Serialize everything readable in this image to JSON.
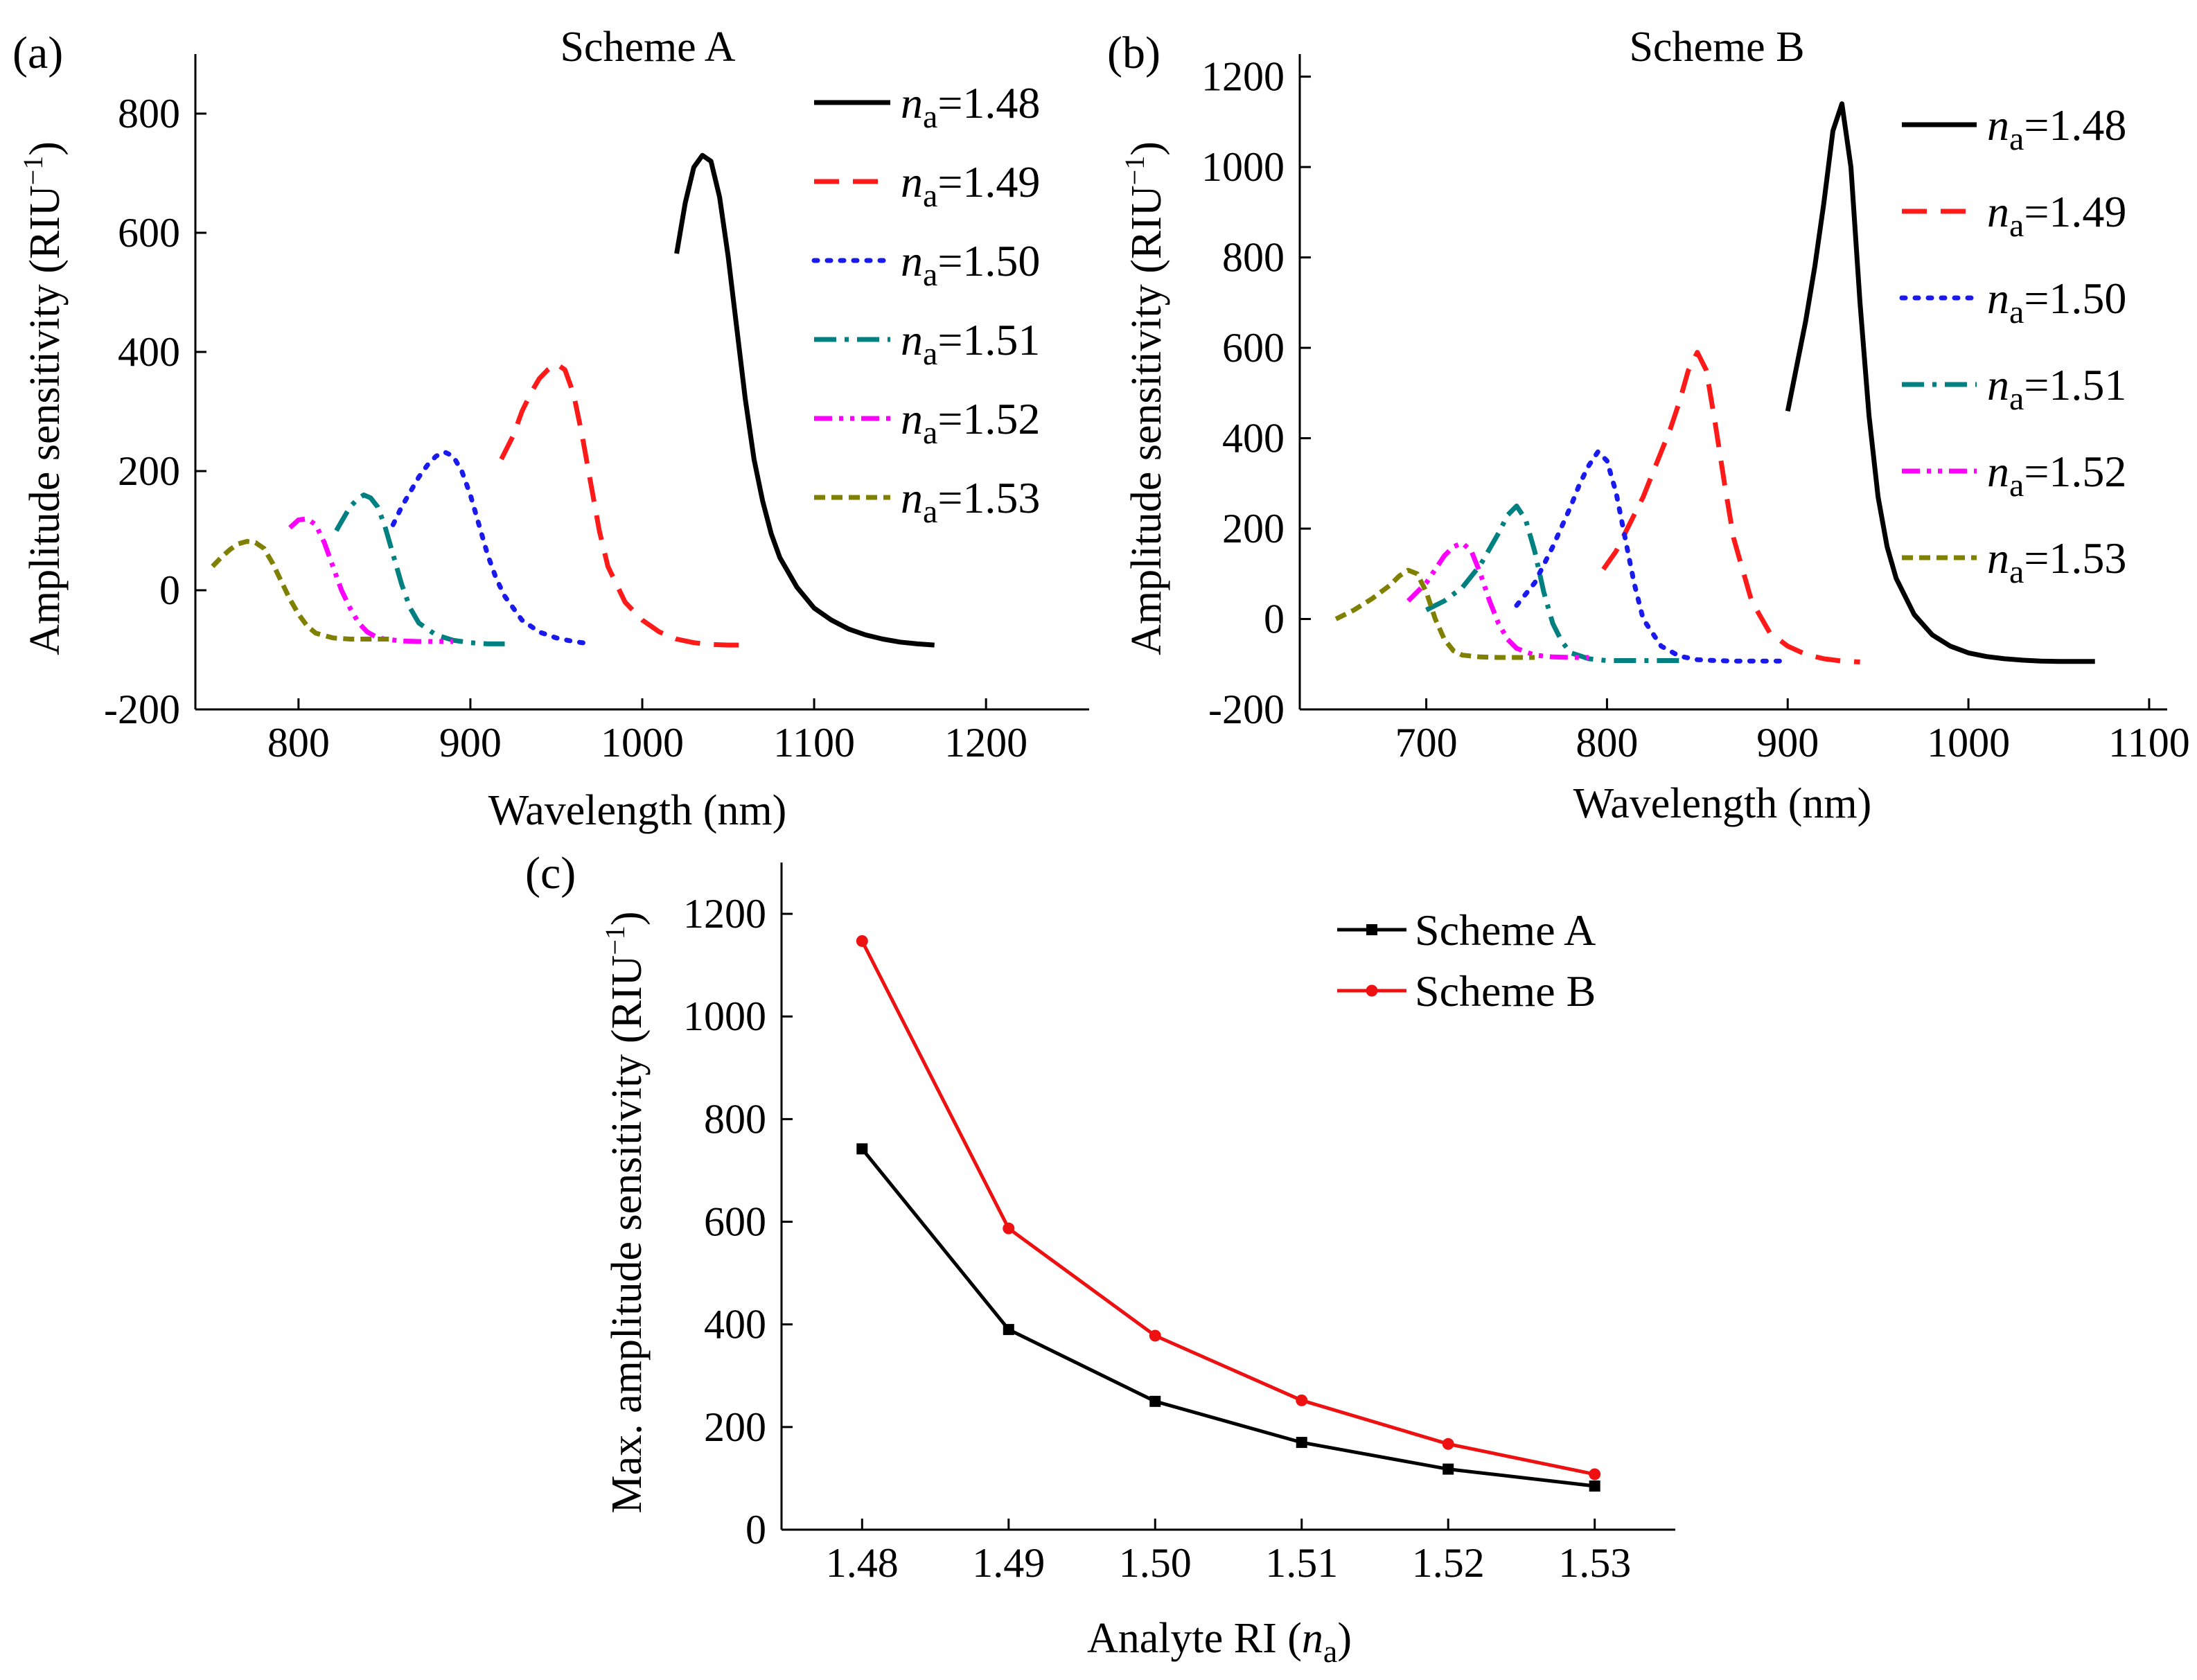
{
  "figure": {
    "panel_labels": [
      "(a)",
      "(b)",
      "(c)"
    ]
  },
  "chart_data": [
    {
      "panel": "a",
      "type": "line",
      "title": "Scheme A",
      "xlabel": "Wavelength (nm)",
      "ylabel": "Amplitude sensitivity (RIU",
      "ylabel_sup": "−1",
      "ylabel_close": ")",
      "xlim": [
        740,
        1260
      ],
      "ylim": [
        -200,
        900
      ],
      "xticks": [
        800,
        900,
        1000,
        1100,
        1200
      ],
      "yticks": [
        -200,
        0,
        200,
        400,
        600,
        800
      ],
      "legend_position": "top-right",
      "series": [
        {
          "name": "na=1.48",
          "legend_italic": "n",
          "legend_sub": "a",
          "legend_value": "=1.48",
          "color": "#000000",
          "dash": "solid",
          "x": [
            1020,
            1025,
            1030,
            1035,
            1040,
            1045,
            1050,
            1055,
            1060,
            1065,
            1070,
            1075,
            1080,
            1090,
            1100,
            1110,
            1120,
            1130,
            1140,
            1150,
            1160,
            1170
          ],
          "y": [
            565,
            650,
            710,
            730,
            720,
            660,
            560,
            440,
            320,
            220,
            150,
            95,
            55,
            5,
            -30,
            -50,
            -65,
            -75,
            -82,
            -87,
            -90,
            -92
          ]
        },
        {
          "name": "na=1.49",
          "legend_italic": "n",
          "legend_sub": "a",
          "legend_value": "=1.49",
          "color": "#ff1a1a",
          "dash": "dashed",
          "x": [
            918,
            925,
            930,
            935,
            940,
            945,
            950,
            955,
            960,
            965,
            970,
            975,
            980,
            990,
            1000,
            1010,
            1020,
            1030,
            1040,
            1050,
            1058
          ],
          "y": [
            220,
            260,
            300,
            330,
            355,
            370,
            380,
            370,
            330,
            260,
            180,
            100,
            40,
            -20,
            -50,
            -70,
            -82,
            -88,
            -91,
            -92,
            -92
          ]
        },
        {
          "name": "na=1.50",
          "legend_italic": "n",
          "legend_sub": "a",
          "legend_value": "=1.50",
          "color": "#1a1aee",
          "dash": "dotted",
          "x": [
            855,
            860,
            865,
            870,
            875,
            880,
            885,
            890,
            895,
            900,
            905,
            910,
            915,
            920,
            930,
            940,
            950,
            960,
            970
          ],
          "y": [
            110,
            140,
            165,
            190,
            210,
            225,
            232,
            225,
            200,
            160,
            110,
            60,
            20,
            -10,
            -50,
            -70,
            -80,
            -86,
            -90
          ]
        },
        {
          "name": "na=1.51",
          "legend_italic": "n",
          "legend_sub": "a",
          "legend_value": "=1.51",
          "color": "#008080",
          "dash": "dashdot",
          "x": [
            822,
            826,
            830,
            834,
            838,
            842,
            846,
            850,
            855,
            860,
            865,
            870,
            880,
            890,
            900,
            910,
            920
          ],
          "y": [
            100,
            120,
            140,
            152,
            160,
            155,
            140,
            110,
            60,
            10,
            -30,
            -55,
            -75,
            -84,
            -88,
            -90,
            -90
          ]
        },
        {
          "name": "na=1.52",
          "legend_italic": "n",
          "legend_sub": "a",
          "legend_value": "=1.52",
          "color": "#ff00ff",
          "dash": "dashdotdot",
          "x": [
            795,
            800,
            805,
            810,
            815,
            820,
            825,
            830,
            835,
            840,
            845,
            850,
            860,
            870,
            880,
            890
          ],
          "y": [
            105,
            118,
            120,
            110,
            80,
            40,
            0,
            -30,
            -55,
            -70,
            -78,
            -82,
            -85,
            -86,
            -86,
            -86
          ]
        },
        {
          "name": "na=1.53",
          "legend_italic": "n",
          "legend_sub": "a",
          "legend_value": "=1.53",
          "color": "#808000",
          "dash": "shortdash",
          "x": [
            750,
            755,
            760,
            765,
            770,
            775,
            780,
            785,
            790,
            795,
            800,
            805,
            810,
            820,
            830,
            840,
            850,
            855
          ],
          "y": [
            40,
            55,
            68,
            78,
            82,
            80,
            70,
            45,
            15,
            -15,
            -40,
            -60,
            -72,
            -80,
            -82,
            -82,
            -82,
            -82
          ]
        }
      ]
    },
    {
      "panel": "b",
      "type": "line",
      "title": "Scheme B",
      "xlabel": "Wavelength (nm)",
      "ylabel": "Amplitude sensitivity (RIU",
      "ylabel_sup": "−1",
      "ylabel_close": ")",
      "xlim": [
        630,
        1110
      ],
      "ylim": [
        -200,
        1250
      ],
      "xticks": [
        700,
        800,
        900,
        1000,
        1100
      ],
      "yticks": [
        -200,
        0,
        200,
        400,
        600,
        800,
        1000,
        1200
      ],
      "legend_position": "top-right",
      "series": [
        {
          "name": "na=1.48",
          "legend_italic": "n",
          "legend_sub": "a",
          "legend_value": "=1.48",
          "color": "#000000",
          "dash": "solid",
          "x": [
            900,
            905,
            910,
            915,
            920,
            925,
            930,
            935,
            940,
            945,
            950,
            955,
            960,
            970,
            980,
            990,
            1000,
            1010,
            1020,
            1030,
            1040,
            1050,
            1060,
            1070
          ],
          "y": [
            460,
            560,
            660,
            780,
            920,
            1080,
            1140,
            1000,
            700,
            450,
            270,
            160,
            90,
            10,
            -35,
            -60,
            -75,
            -83,
            -88,
            -91,
            -93,
            -94,
            -94,
            -94
          ]
        },
        {
          "name": "na=1.49",
          "legend_italic": "n",
          "legend_sub": "a",
          "legend_value": "=1.49",
          "color": "#ff1a1a",
          "dash": "dashed",
          "x": [
            798,
            805,
            810,
            815,
            820,
            825,
            830,
            835,
            840,
            845,
            850,
            855,
            860,
            865,
            870,
            880,
            890,
            900,
            910,
            920,
            930,
            940
          ],
          "y": [
            110,
            150,
            190,
            230,
            270,
            320,
            370,
            420,
            480,
            550,
            590,
            550,
            430,
            300,
            180,
            40,
            -30,
            -60,
            -78,
            -88,
            -93,
            -95
          ]
        },
        {
          "name": "na=1.50",
          "legend_italic": "n",
          "legend_sub": "a",
          "legend_value": "=1.50",
          "color": "#1a1aee",
          "dash": "dotted",
          "x": [
            750,
            760,
            770,
            780,
            785,
            790,
            795,
            800,
            805,
            810,
            815,
            820,
            830,
            840,
            850,
            860,
            870,
            880,
            890,
            900
          ],
          "y": [
            30,
            80,
            160,
            250,
            300,
            340,
            370,
            350,
            280,
            180,
            80,
            0,
            -60,
            -82,
            -90,
            -92,
            -93,
            -93,
            -93,
            -93
          ]
        },
        {
          "name": "na=1.51",
          "legend_italic": "n",
          "legend_sub": "a",
          "legend_value": "=1.51",
          "color": "#008080",
          "dash": "dashdot",
          "x": [
            700,
            710,
            720,
            730,
            740,
            745,
            750,
            755,
            760,
            765,
            770,
            775,
            780,
            790,
            800,
            810,
            820,
            830,
            840
          ],
          "y": [
            20,
            40,
            70,
            120,
            190,
            230,
            250,
            220,
            150,
            60,
            -10,
            -50,
            -75,
            -88,
            -92,
            -92,
            -92,
            -92,
            -92
          ]
        },
        {
          "name": "na=1.52",
          "legend_italic": "n",
          "legend_sub": "a",
          "legend_value": "=1.52",
          "color": "#ff00ff",
          "dash": "dashdotdot",
          "x": [
            690,
            695,
            700,
            705,
            710,
            715,
            720,
            725,
            730,
            735,
            740,
            745,
            750,
            760,
            770,
            780,
            790
          ],
          "y": [
            40,
            60,
            80,
            110,
            140,
            160,
            168,
            150,
            100,
            40,
            -10,
            -45,
            -65,
            -80,
            -84,
            -85,
            -85
          ]
        },
        {
          "name": "na=1.53",
          "legend_italic": "n",
          "legend_sub": "a",
          "legend_value": "=1.53",
          "color": "#808000",
          "dash": "shortdash",
          "x": [
            650,
            660,
            670,
            680,
            685,
            690,
            695,
            700,
            705,
            710,
            715,
            720,
            730,
            740,
            750,
            760
          ],
          "y": [
            0,
            20,
            45,
            75,
            95,
            108,
            100,
            60,
            0,
            -45,
            -70,
            -80,
            -84,
            -85,
            -85,
            -85
          ]
        }
      ]
    },
    {
      "panel": "c",
      "type": "line",
      "markers": true,
      "xlabel_prefix": "Analyte RI (",
      "xlabel_italic": "n",
      "xlabel_sub": "a",
      "xlabel_suffix": ")",
      "ylabel": "Max. amplitude sensitivity (RIU",
      "ylabel_sup": "−1",
      "ylabel_close": ")",
      "xlim": [
        1.4745,
        1.5355
      ],
      "ylim": [
        0,
        1300
      ],
      "xticks": [
        1.48,
        1.49,
        1.5,
        1.51,
        1.52,
        1.53
      ],
      "xtick_labels": [
        "1.48",
        "1.49",
        "1.50",
        "1.51",
        "1.52",
        "1.53"
      ],
      "yticks": [
        0,
        200,
        400,
        600,
        800,
        1000,
        1200
      ],
      "legend_position": "top-right",
      "categories": [
        1.48,
        1.49,
        1.5,
        1.51,
        1.52,
        1.53
      ],
      "series": [
        {
          "name": "Scheme A",
          "color": "#000000",
          "marker": "square",
          "values": [
            742,
            390,
            250,
            170,
            118,
            85
          ]
        },
        {
          "name": "Scheme B",
          "color": "#ee1111",
          "marker": "circle",
          "values": [
            1147,
            587,
            378,
            252,
            167,
            108
          ]
        }
      ]
    }
  ]
}
